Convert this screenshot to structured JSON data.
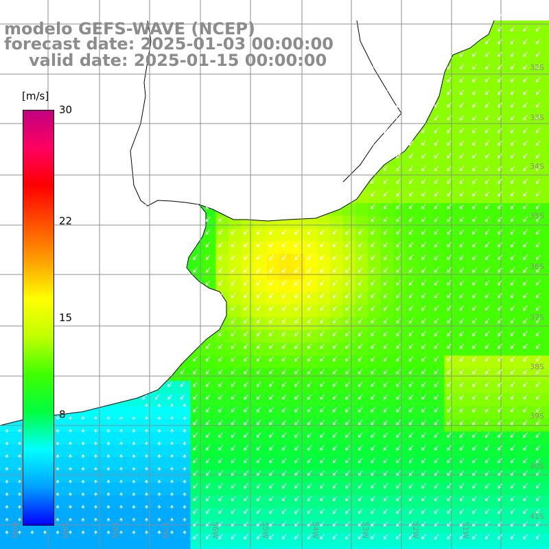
{
  "titles": {
    "line1": "modelo GEFS-WAVE (NCEP)",
    "line2": "forecast date: 2025-01-03 00:00:00",
    "line3": "valid date: 2025-01-15 00:00:00"
  },
  "legend": {
    "unit": "[m/s]",
    "ticks": [
      "30",
      "22",
      "15",
      "8"
    ],
    "tick_values": [
      30,
      22,
      15,
      8
    ],
    "range": [
      0,
      30
    ],
    "colors": [
      "#0000ff",
      "#00a0ff",
      "#00ffff",
      "#00ff40",
      "#40ff00",
      "#c0ff00",
      "#ffff00",
      "#ffa000",
      "#ff5000",
      "#ff0000",
      "#ff0060",
      "#c00080"
    ]
  },
  "map": {
    "lon_labels": [
      "60W",
      "59W",
      "58W",
      "57W",
      "56W",
      "55W",
      "54W",
      "53W",
      "52W",
      "51W"
    ],
    "lat_labels": [
      "32S",
      "33S",
      "34S",
      "35S",
      "36S",
      "37S",
      "38S",
      "39S",
      "40S",
      "41S"
    ],
    "grid_color": "#8c8c8c",
    "land_color": "#ffffff",
    "coast_color": "#000000",
    "arrow_color": "#ffffff"
  }
}
